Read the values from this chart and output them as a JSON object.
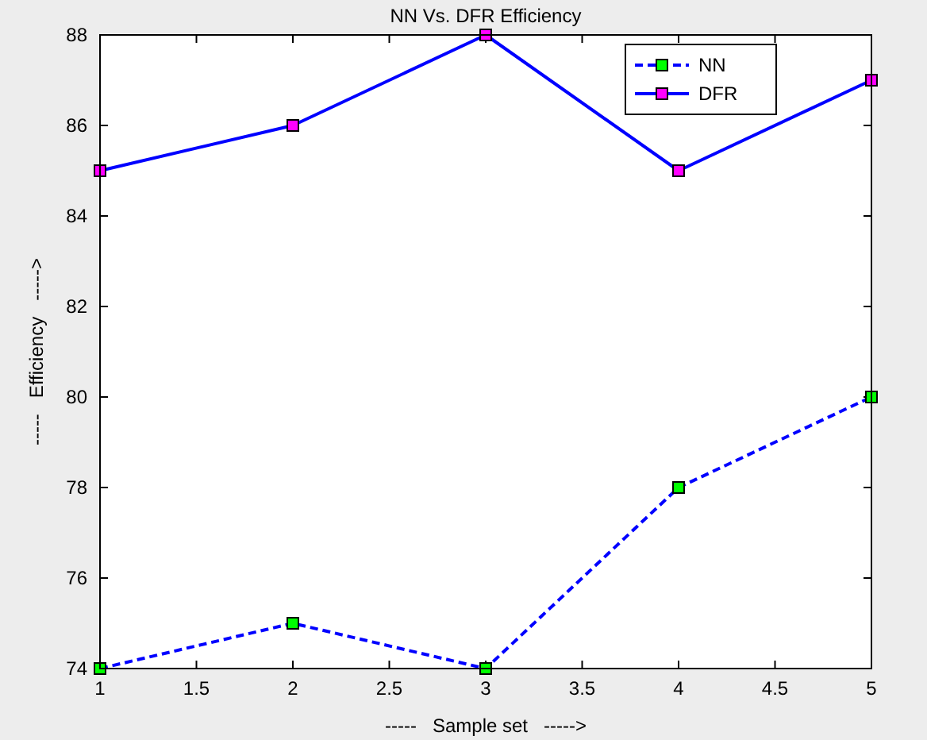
{
  "chart_data": {
    "type": "line",
    "title": "NN Vs. DFR Efficiency",
    "xlabel": "-----   Sample set   ----->",
    "ylabel": "-----   Efficiency   ----->",
    "x": [
      1,
      2,
      3,
      4,
      5
    ],
    "series": [
      {
        "name": "NN",
        "color": "#0000ff",
        "colors": [
          "#00ff00",
          "#00ff00",
          "#00ff00",
          "#00ff00",
          "#00ff00"
        ],
        "line_style": "dashed",
        "values": [
          74,
          75,
          74,
          78,
          80
        ]
      },
      {
        "name": "DFR",
        "color": "#0000ff",
        "colors": [
          "#ff00ff",
          "#ff00ff",
          "#ff00ff",
          "#ff00ff",
          "#ff00ff"
        ],
        "line_style": "solid",
        "values": [
          85,
          86,
          88,
          85,
          87
        ]
      }
    ],
    "xlim": [
      1,
      5
    ],
    "xticks": [
      1,
      1.5,
      2,
      2.5,
      3,
      3.5,
      4,
      4.5,
      5
    ],
    "ylim": [
      74,
      88
    ],
    "yticks": [
      74,
      76,
      78,
      80,
      82,
      84,
      86,
      88
    ],
    "grid": false,
    "legend": "top right",
    "marker": "square"
  }
}
